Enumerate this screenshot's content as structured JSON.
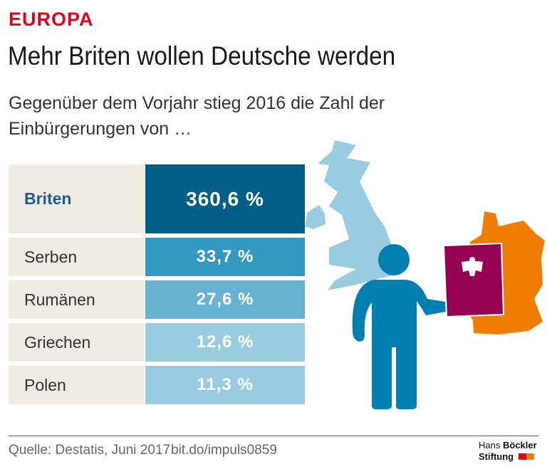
{
  "header": {
    "kicker": "EUROPA",
    "title": "Mehr Briten wollen Deutsche werden",
    "subtitle": "Gegenüber dem Vorjahr stieg 2016 die Zahl der Einbürgerungen von …"
  },
  "chart_data": {
    "type": "table",
    "categories": [
      "Briten",
      "Serben",
      "Rumänen",
      "Griechen",
      "Polen"
    ],
    "values": [
      360.6,
      33.7,
      27.6,
      12.6,
      11.3
    ],
    "labels": [
      "360,6 %",
      "33,7 %",
      "27,6 %",
      "12,6 %",
      "11,3 %"
    ],
    "unit": "%",
    "colors": [
      "#005f87",
      "#3399c0",
      "#66b2d0",
      "#99cce0",
      "#99cce0"
    ]
  },
  "footer": {
    "source": "Quelle: Destatis, Juni 2017",
    "url": "bit.do/impuls0859",
    "logo_line1_a": "Hans",
    "logo_line1_b": "Böckler",
    "logo_line2": "Stiftung"
  },
  "colors": {
    "kicker": "#e3001b",
    "uk_map": "#99cce0",
    "person": "#0080b0",
    "germany_map": "#f07d00",
    "passport": "#960050"
  },
  "icons": [
    "uk-map",
    "germany-map",
    "person-icon",
    "passport-icon",
    "eagle-icon"
  ]
}
